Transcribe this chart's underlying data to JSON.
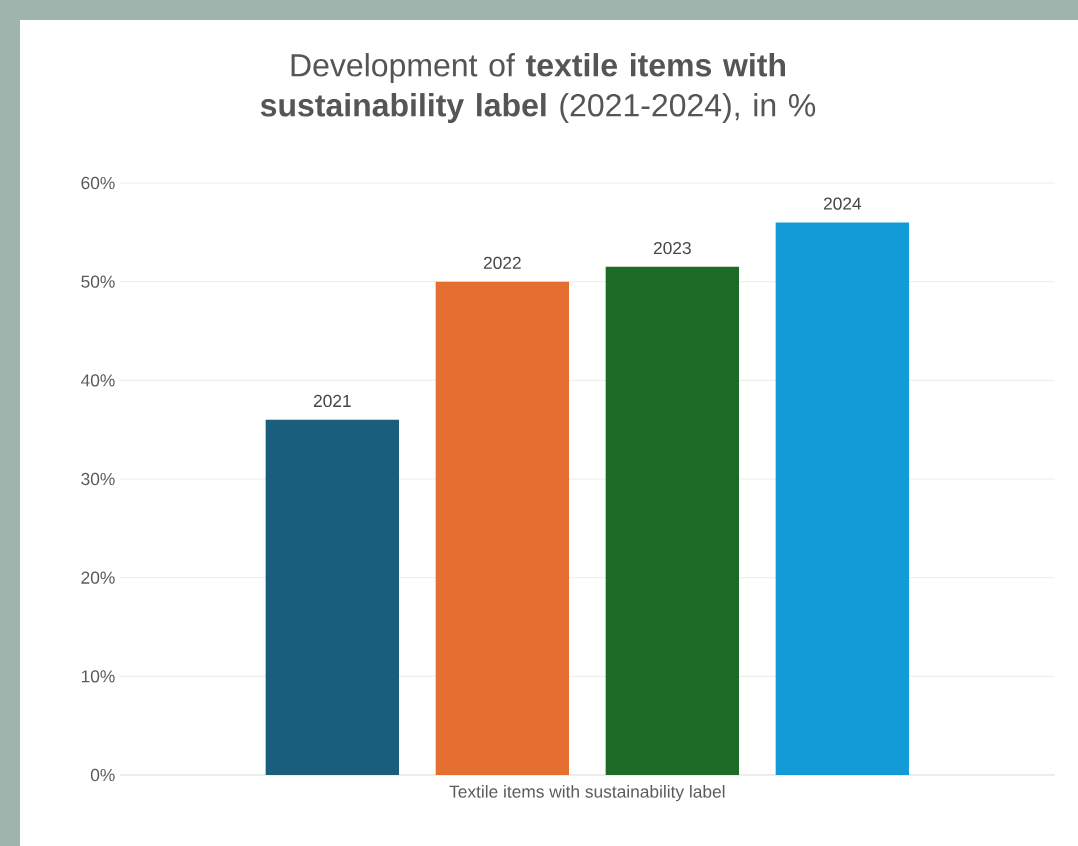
{
  "chart_data": {
    "type": "bar",
    "title": "Development of **textile items with sustainability label** (2021-2024), in %",
    "categories": [
      "Textile items with sustainability label"
    ],
    "series": [
      {
        "name": "2021",
        "color": "#1a5e7e",
        "values": [
          36
        ]
      },
      {
        "name": "2022",
        "color": "#e56f31",
        "values": [
          50
        ]
      },
      {
        "name": "2023",
        "color": "#1d6b27",
        "values": [
          51.5
        ]
      },
      {
        "name": "2024",
        "color": "#129bd6",
        "values": [
          56
        ]
      }
    ],
    "ylim": [
      0,
      60
    ],
    "yticks": [
      {
        "value": 0,
        "label": "0%"
      },
      {
        "value": 10,
        "label": "10%"
      },
      {
        "value": 20,
        "label": "20%"
      },
      {
        "value": 30,
        "label": "30%"
      },
      {
        "value": 40,
        "label": "40%"
      },
      {
        "value": 50,
        "label": "50%"
      },
      {
        "value": 60,
        "label": "60%"
      }
    ],
    "grid": "y"
  }
}
